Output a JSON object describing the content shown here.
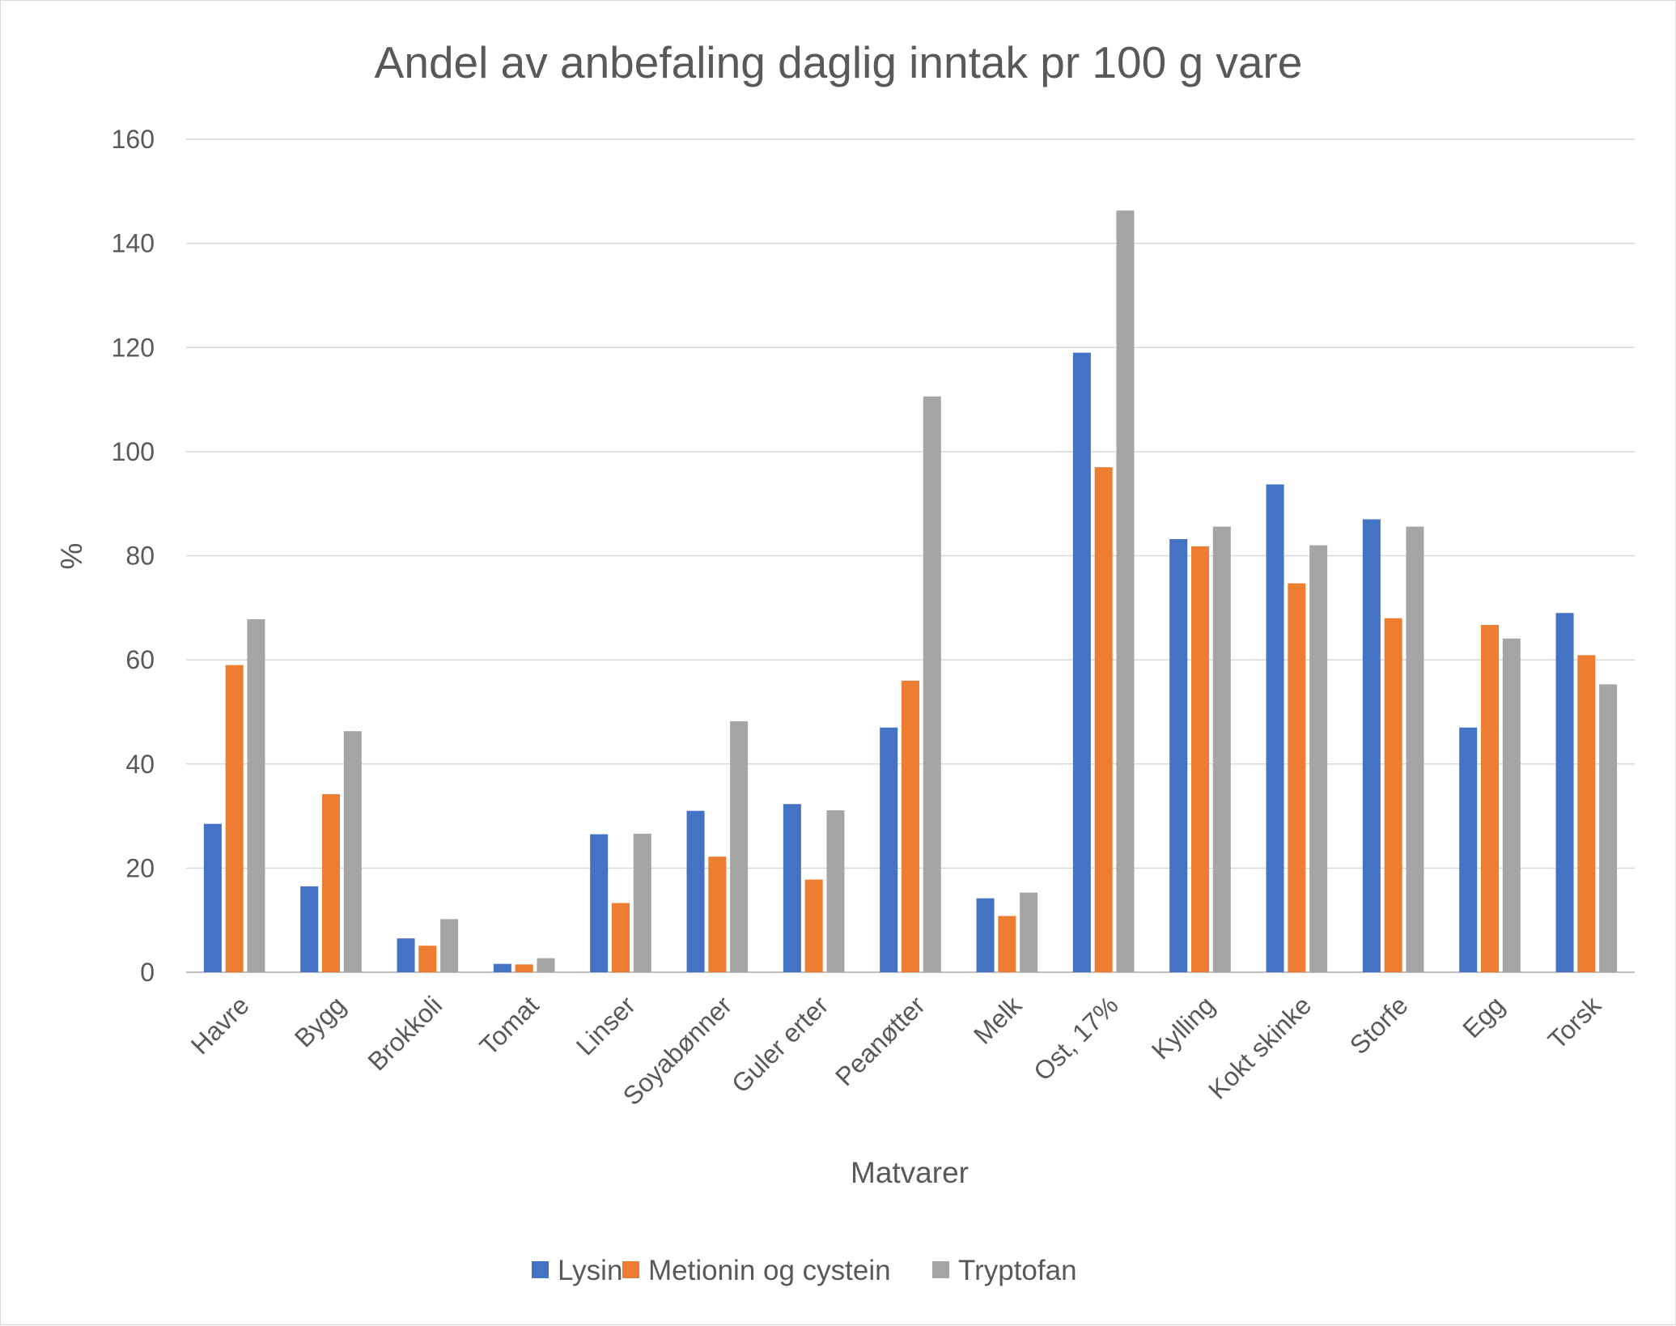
{
  "chart_data": {
    "type": "bar",
    "title": "Andel av anbefaling daglig inntak pr 100 g vare",
    "xlabel": "Matvarer",
    "ylabel": "%",
    "ylim": [
      0,
      160
    ],
    "yticks": [
      0,
      20,
      40,
      60,
      80,
      100,
      120,
      140,
      160
    ],
    "grid": true,
    "legend_position": "bottom",
    "categories": [
      "Havre",
      "Bygg",
      "Brokkoli",
      "Tomat",
      "Linser",
      "Soyabønner",
      "Guler erter",
      "Peanøtter",
      "Melk",
      "Ost, 17%",
      "Kylling",
      "Kokt skinke",
      "Storfe",
      "Egg",
      "Torsk"
    ],
    "series": [
      {
        "name": "Lysin",
        "color": "#4472c4",
        "values": [
          28.5,
          16.5,
          6.5,
          1.6,
          26.5,
          31,
          32.3,
          47,
          14.2,
          119,
          83.2,
          93.7,
          87,
          47,
          69
        ]
      },
      {
        "name": "Metionin og cystein",
        "color": "#ed7d31",
        "values": [
          59,
          34.2,
          5.1,
          1.5,
          13.3,
          22.2,
          17.8,
          56,
          10.8,
          97,
          81.8,
          74.7,
          68,
          66.7,
          60.9
        ]
      },
      {
        "name": "Tryptofan",
        "color": "#a5a5a5",
        "values": [
          67.8,
          46.3,
          10.2,
          2.7,
          26.6,
          48.2,
          31.1,
          110.6,
          15.3,
          146.3,
          85.6,
          82,
          85.6,
          64.1,
          55.3
        ]
      }
    ]
  }
}
